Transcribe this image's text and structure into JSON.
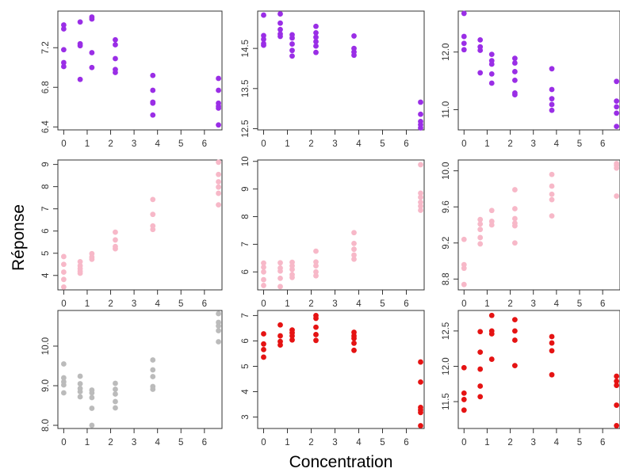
{
  "chart_data": {
    "type": "scatter",
    "xlabel": "Concentration",
    "ylabel": "Réponse",
    "grid": false,
    "layout": "3x3 grid of panels",
    "x_ticks": [
      0,
      1,
      2,
      3,
      4,
      5,
      6
    ],
    "x_tick_labels": [
      "0",
      "1",
      "2",
      "3",
      "4",
      "5",
      "6"
    ],
    "panels": [
      {
        "row": 1,
        "col": 1,
        "color": "#9a2ee6",
        "ylim": [
          6.37,
          7.57
        ],
        "y_ticks": [
          6.4,
          6.8,
          7.2
        ],
        "y_tick_labels": [
          "6.4",
          "6.8",
          "7.2"
        ],
        "points": [
          [
            0,
            7.43
          ],
          [
            0,
            7.39
          ],
          [
            0,
            7.18
          ],
          [
            0,
            7.05
          ],
          [
            0,
            7.01
          ],
          [
            0.7,
            7.46
          ],
          [
            0.7,
            7.24
          ],
          [
            0.7,
            7.22
          ],
          [
            0.7,
            6.88
          ],
          [
            1.2,
            7.51
          ],
          [
            1.2,
            7.49
          ],
          [
            1.2,
            7.15
          ],
          [
            1.2,
            7.0
          ],
          [
            2.2,
            7.28
          ],
          [
            2.2,
            7.23
          ],
          [
            2.2,
            7.09
          ],
          [
            2.2,
            6.98
          ],
          [
            2.2,
            6.95
          ],
          [
            3.8,
            6.92
          ],
          [
            3.8,
            6.77
          ],
          [
            3.8,
            6.65
          ],
          [
            3.8,
            6.64
          ],
          [
            3.8,
            6.52
          ],
          [
            6.6,
            6.89
          ],
          [
            6.6,
            6.77
          ],
          [
            6.6,
            6.64
          ],
          [
            6.6,
            6.61
          ],
          [
            6.6,
            6.59
          ],
          [
            6.6,
            6.42
          ]
        ]
      },
      {
        "row": 1,
        "col": 2,
        "color": "#9a2ee6",
        "ylim": [
          12.47,
          15.43
        ],
        "y_ticks": [
          12.5,
          13.5,
          14.5
        ],
        "y_tick_labels": [
          "12.5",
          "13.5",
          "14.5"
        ],
        "points": [
          [
            0,
            15.33
          ],
          [
            0,
            14.82
          ],
          [
            0,
            14.73
          ],
          [
            0,
            14.62
          ],
          [
            0,
            14.58
          ],
          [
            0.7,
            15.36
          ],
          [
            0.7,
            15.13
          ],
          [
            0.7,
            14.97
          ],
          [
            0.7,
            14.86
          ],
          [
            0.7,
            14.8
          ],
          [
            1.2,
            14.84
          ],
          [
            1.2,
            14.76
          ],
          [
            1.2,
            14.61
          ],
          [
            1.2,
            14.45
          ],
          [
            1.2,
            14.31
          ],
          [
            2.2,
            15.05
          ],
          [
            2.2,
            14.89
          ],
          [
            2.2,
            14.78
          ],
          [
            2.2,
            14.67
          ],
          [
            2.2,
            14.56
          ],
          [
            2.2,
            14.4
          ],
          [
            3.8,
            14.81
          ],
          [
            3.8,
            14.5
          ],
          [
            3.8,
            14.41
          ],
          [
            3.8,
            14.33
          ],
          [
            6.6,
            13.16
          ],
          [
            6.6,
            12.86
          ],
          [
            6.6,
            12.68
          ],
          [
            6.6,
            12.6
          ],
          [
            6.6,
            12.52
          ]
        ]
      },
      {
        "row": 1,
        "col": 3,
        "color": "#9a2ee6",
        "ylim": [
          10.65,
          12.71
        ],
        "y_ticks": [
          11.0,
          12.0
        ],
        "y_tick_labels": [
          "11.0",
          "12.0"
        ],
        "points": [
          [
            0,
            12.67
          ],
          [
            0,
            12.27
          ],
          [
            0,
            12.15
          ],
          [
            0,
            12.04
          ],
          [
            0.7,
            12.21
          ],
          [
            0.7,
            12.09
          ],
          [
            0.7,
            12.03
          ],
          [
            0.7,
            11.64
          ],
          [
            1.2,
            11.96
          ],
          [
            1.2,
            11.85
          ],
          [
            1.2,
            11.79
          ],
          [
            1.2,
            11.62
          ],
          [
            1.2,
            11.46
          ],
          [
            2.2,
            11.89
          ],
          [
            2.2,
            11.81
          ],
          [
            2.2,
            11.66
          ],
          [
            2.2,
            11.51
          ],
          [
            2.2,
            11.29
          ],
          [
            2.2,
            11.26
          ],
          [
            3.8,
            11.71
          ],
          [
            3.8,
            11.35
          ],
          [
            3.8,
            11.19
          ],
          [
            3.8,
            11.09
          ],
          [
            3.8,
            10.99
          ],
          [
            6.6,
            11.49
          ],
          [
            6.6,
            11.15
          ],
          [
            6.6,
            11.05
          ],
          [
            6.6,
            10.94
          ],
          [
            6.6,
            10.71
          ]
        ]
      },
      {
        "row": 2,
        "col": 1,
        "color": "#f7b8c8",
        "ylim": [
          3.35,
          9.2
        ],
        "y_ticks": [
          4,
          5,
          6,
          7,
          8,
          9
        ],
        "y_tick_labels": [
          "4",
          "5",
          "6",
          "7",
          "8",
          "9"
        ],
        "points": [
          [
            0,
            4.85
          ],
          [
            0,
            4.5
          ],
          [
            0,
            4.15
          ],
          [
            0,
            3.82
          ],
          [
            0,
            3.48
          ],
          [
            0.7,
            4.62
          ],
          [
            0.7,
            4.44
          ],
          [
            0.7,
            4.31
          ],
          [
            0.7,
            4.19
          ],
          [
            0.7,
            4.1
          ],
          [
            1.2,
            4.98
          ],
          [
            1.2,
            4.83
          ],
          [
            1.2,
            4.73
          ],
          [
            2.2,
            5.95
          ],
          [
            2.2,
            5.6
          ],
          [
            2.2,
            5.3
          ],
          [
            2.2,
            5.2
          ],
          [
            3.8,
            7.42
          ],
          [
            3.8,
            6.75
          ],
          [
            3.8,
            6.23
          ],
          [
            3.8,
            6.07
          ],
          [
            6.6,
            9.1
          ],
          [
            6.6,
            8.55
          ],
          [
            6.6,
            8.22
          ],
          [
            6.6,
            7.98
          ],
          [
            6.6,
            7.7
          ],
          [
            6.6,
            7.18
          ]
        ]
      },
      {
        "row": 2,
        "col": 2,
        "color": "#f7b8c8",
        "ylim": [
          5.35,
          10.05
        ],
        "y_ticks": [
          6,
          7,
          8,
          9,
          10
        ],
        "y_tick_labels": [
          "6",
          "7",
          "8",
          "9",
          "10"
        ],
        "points": [
          [
            0,
            6.32
          ],
          [
            0,
            6.17
          ],
          [
            0,
            6.0
          ],
          [
            0,
            5.72
          ],
          [
            0,
            5.51
          ],
          [
            0.7,
            6.33
          ],
          [
            0.7,
            6.14
          ],
          [
            0.7,
            6.03
          ],
          [
            0.7,
            5.77
          ],
          [
            0.7,
            5.47
          ],
          [
            1.2,
            6.35
          ],
          [
            1.2,
            6.22
          ],
          [
            1.2,
            6.09
          ],
          [
            1.2,
            5.9
          ],
          [
            1.2,
            5.8
          ],
          [
            2.2,
            6.75
          ],
          [
            2.2,
            6.36
          ],
          [
            2.2,
            6.22
          ],
          [
            2.2,
            6.0
          ],
          [
            2.2,
            5.86
          ],
          [
            3.8,
            7.42
          ],
          [
            3.8,
            7.03
          ],
          [
            3.8,
            6.82
          ],
          [
            3.8,
            6.61
          ],
          [
            3.8,
            6.46
          ],
          [
            6.6,
            9.88
          ],
          [
            6.6,
            8.85
          ],
          [
            6.6,
            8.7
          ],
          [
            6.6,
            8.52
          ],
          [
            6.6,
            8.38
          ],
          [
            6.6,
            8.23
          ]
        ]
      },
      {
        "row": 2,
        "col": 3,
        "color": "#f7b8c8",
        "ylim": [
          8.68,
          10.12
        ],
        "y_ticks": [
          8.8,
          9.2,
          9.6,
          10.0
        ],
        "y_tick_labels": [
          "8.8",
          "9.2",
          "9.6",
          "10.0"
        ],
        "points": [
          [
            0,
            9.24
          ],
          [
            0,
            8.96
          ],
          [
            0,
            8.92
          ],
          [
            0,
            8.74
          ],
          [
            0.7,
            9.46
          ],
          [
            0.7,
            9.41
          ],
          [
            0.7,
            9.35
          ],
          [
            0.7,
            9.26
          ],
          [
            0.7,
            9.19
          ],
          [
            1.2,
            9.56
          ],
          [
            1.2,
            9.44
          ],
          [
            1.2,
            9.4
          ],
          [
            2.2,
            9.79
          ],
          [
            2.2,
            9.58
          ],
          [
            2.2,
            9.47
          ],
          [
            2.2,
            9.42
          ],
          [
            2.2,
            9.39
          ],
          [
            2.2,
            9.2
          ],
          [
            3.8,
            9.96
          ],
          [
            3.8,
            9.83
          ],
          [
            3.8,
            9.74
          ],
          [
            3.8,
            9.68
          ],
          [
            3.8,
            9.5
          ],
          [
            6.6,
            10.08
          ],
          [
            6.6,
            10.06
          ],
          [
            6.6,
            10.03
          ],
          [
            6.6,
            9.72
          ]
        ]
      },
      {
        "row": 3,
        "col": 1,
        "color": "#bbbbbb",
        "ylim": [
          7.92,
          10.9
        ],
        "y_ticks": [
          8.0,
          9.0,
          10.0
        ],
        "y_tick_labels": [
          "8.0",
          "9.0",
          "10.0"
        ],
        "points": [
          [
            0,
            9.55
          ],
          [
            0,
            9.2
          ],
          [
            0,
            9.1
          ],
          [
            0,
            9.02
          ],
          [
            0,
            8.82
          ],
          [
            0.7,
            9.24
          ],
          [
            0.7,
            9.05
          ],
          [
            0.7,
            8.93
          ],
          [
            0.7,
            8.85
          ],
          [
            0.7,
            8.72
          ],
          [
            1.2,
            8.89
          ],
          [
            1.2,
            8.82
          ],
          [
            1.2,
            8.7
          ],
          [
            1.2,
            8.43
          ],
          [
            1.2,
            8.0
          ],
          [
            2.2,
            9.06
          ],
          [
            2.2,
            8.91
          ],
          [
            2.2,
            8.79
          ],
          [
            2.2,
            8.6
          ],
          [
            2.2,
            8.44
          ],
          [
            3.8,
            9.65
          ],
          [
            3.8,
            9.4
          ],
          [
            3.8,
            9.23
          ],
          [
            3.8,
            8.98
          ],
          [
            3.8,
            8.91
          ],
          [
            6.6,
            10.82
          ],
          [
            6.6,
            10.6
          ],
          [
            6.6,
            10.51
          ],
          [
            6.6,
            10.39
          ],
          [
            6.6,
            10.11
          ]
        ]
      },
      {
        "row": 3,
        "col": 2,
        "color": "#e51313",
        "ylim": [
          2.55,
          7.2
        ],
        "y_ticks": [
          3,
          4,
          5,
          6,
          7
        ],
        "y_tick_labels": [
          "3",
          "4",
          "5",
          "6",
          "7"
        ],
        "points": [
          [
            0,
            6.28
          ],
          [
            0,
            5.88
          ],
          [
            0,
            5.66
          ],
          [
            0,
            5.36
          ],
          [
            0.7,
            6.63
          ],
          [
            0.7,
            6.2
          ],
          [
            0.7,
            5.98
          ],
          [
            0.7,
            5.84
          ],
          [
            1.2,
            6.43
          ],
          [
            1.2,
            6.32
          ],
          [
            1.2,
            6.2
          ],
          [
            1.2,
            6.04
          ],
          [
            2.2,
            7.0
          ],
          [
            2.2,
            6.89
          ],
          [
            2.2,
            6.54
          ],
          [
            2.2,
            6.25
          ],
          [
            2.2,
            6.02
          ],
          [
            3.8,
            6.34
          ],
          [
            3.8,
            6.2
          ],
          [
            3.8,
            6.1
          ],
          [
            3.8,
            5.91
          ],
          [
            3.8,
            5.63
          ],
          [
            6.6,
            5.17
          ],
          [
            6.6,
            4.38
          ],
          [
            6.6,
            3.38
          ],
          [
            6.6,
            3.28
          ],
          [
            6.6,
            3.18
          ],
          [
            6.6,
            2.66
          ]
        ]
      },
      {
        "row": 3,
        "col": 3,
        "color": "#e51313",
        "ylim": [
          11.12,
          12.79
        ],
        "y_ticks": [
          11.5,
          12.0,
          12.5
        ],
        "y_tick_labels": [
          "11.5",
          "12.0",
          "12.5"
        ],
        "points": [
          [
            0,
            11.98
          ],
          [
            0,
            11.62
          ],
          [
            0,
            11.53
          ],
          [
            0,
            11.38
          ],
          [
            0.7,
            12.49
          ],
          [
            0.7,
            12.2
          ],
          [
            0.7,
            11.96
          ],
          [
            0.7,
            11.72
          ],
          [
            0.7,
            11.57
          ],
          [
            1.2,
            12.72
          ],
          [
            1.2,
            12.5
          ],
          [
            1.2,
            12.46
          ],
          [
            1.2,
            12.1
          ],
          [
            2.2,
            12.66
          ],
          [
            2.2,
            12.5
          ],
          [
            2.2,
            12.37
          ],
          [
            2.2,
            12.01
          ],
          [
            3.8,
            12.42
          ],
          [
            3.8,
            12.33
          ],
          [
            3.8,
            12.22
          ],
          [
            3.8,
            11.88
          ],
          [
            6.6,
            11.86
          ],
          [
            6.6,
            11.79
          ],
          [
            6.6,
            11.73
          ],
          [
            6.6,
            11.45
          ],
          [
            6.6,
            11.16
          ]
        ]
      }
    ]
  }
}
